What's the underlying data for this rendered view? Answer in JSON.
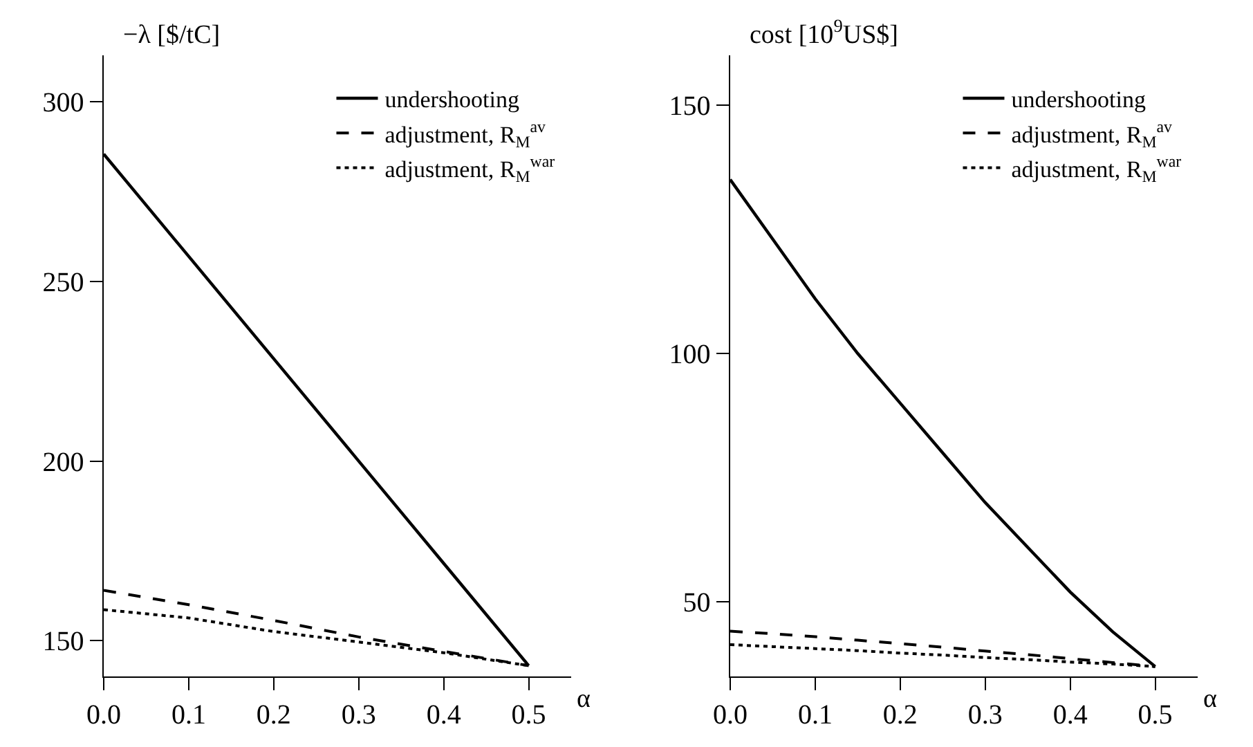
{
  "chart_data": [
    {
      "type": "line",
      "xlabel": "α",
      "ylabel": "−λ [$/tC]",
      "x": [
        0,
        0.1,
        0.2,
        0.3,
        0.4,
        0.5
      ],
      "xlim": [
        0,
        0.55
      ],
      "xticks": [
        {
          "value": 0,
          "label": "0.0"
        },
        0.1,
        0.2,
        0.3,
        0.4,
        0.5
      ],
      "ylim": [
        140,
        313
      ],
      "yticks": [
        150,
        200,
        250,
        300
      ],
      "grid": false,
      "legend": "top right",
      "series": [
        {
          "name": "undershooting",
          "color": "#000000",
          "line_style": "solid",
          "values": [
            285.5,
            257,
            228.5,
            200,
            171.5,
            143
          ]
        },
        {
          "name": "adjustment, R$_{M}$$^{av}$",
          "color": "#000000",
          "line_style": "dashed",
          "values": [
            164,
            160,
            155.6,
            151,
            147,
            143
          ]
        },
        {
          "name": "adjustment, R$_{M}$$^{war}$",
          "color": "#000000",
          "line_style": "dotted",
          "values": [
            158.6,
            156.3,
            152.5,
            149.6,
            146.6,
            143
          ]
        }
      ]
    },
    {
      "type": "line",
      "xlabel": "α",
      "ylabel": "cost [10$^{9}$US$]",
      "x": [
        0,
        0.05,
        0.1,
        0.15,
        0.2,
        0.25,
        0.3,
        0.35,
        0.4,
        0.45,
        0.5
      ],
      "xlim": [
        0,
        0.55
      ],
      "xticks": [
        {
          "value": 0,
          "label": "0.0"
        },
        0.1,
        0.2,
        0.3,
        0.4,
        0.5
      ],
      "ylim": [
        35,
        160
      ],
      "yticks": [
        50,
        100,
        150
      ],
      "grid": false,
      "legend": "top right",
      "series": [
        {
          "name": "undershooting",
          "color": "#000000",
          "line_style": "solid",
          "values": [
            135,
            123,
            111,
            100,
            90,
            80,
            70,
            61,
            52,
            44,
            37
          ]
        },
        {
          "name": "adjustment, R$_{M}$$^{av}$",
          "color": "#000000",
          "line_style": "dashed",
          "values": [
            44.1,
            43.6,
            43,
            42.3,
            41.6,
            40.9,
            40.1,
            39.4,
            38.6,
            37.8,
            37
          ]
        },
        {
          "name": "adjustment, R$_{M}$$^{war}$",
          "color": "#000000",
          "line_style": "dotted",
          "values": [
            41.4,
            41,
            40.6,
            40.2,
            39.7,
            39.3,
            38.8,
            38.4,
            37.9,
            37.5,
            37
          ]
        }
      ]
    }
  ]
}
